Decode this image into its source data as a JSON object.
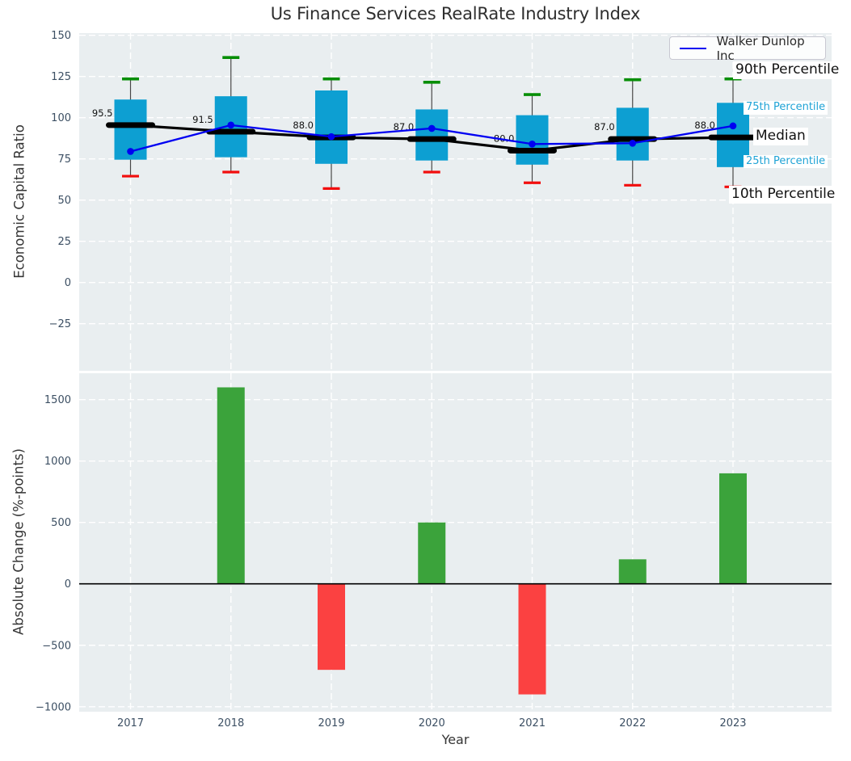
{
  "title": "Us Finance Services RealRate Industry Index",
  "colors": {
    "axes_bg": "#e9eef0",
    "grid": "#ffffff",
    "box_fill": "#0d9fd2",
    "whisker": "#474747",
    "cap_90th": "#068e06",
    "cap_10th": "#f20d0d",
    "median": "#000000",
    "walker_line": "#0000f2",
    "bar_positive": "#3ba33b",
    "bar_negative": "#fb4141",
    "tick_label": "#3c4f63",
    "title_text": "#2e2e2e",
    "percentile_label_cyan": "#1fa3d6",
    "percentile_label_black": "#111111",
    "annotation_text": "#111111",
    "zero_line": "#000000"
  },
  "legend": {
    "entries": [
      {
        "label": "Walker Dunlop Inc",
        "color": "#0000f2"
      }
    ]
  },
  "chart_data": [
    {
      "type": "boxplot_with_line",
      "title": "Us Finance Services RealRate Industry Index",
      "ylabel": "Economic Capital Ratio",
      "ylim": [
        -53.6,
        151.3
      ],
      "yticks": [
        150,
        125,
        100,
        75,
        50,
        25,
        0,
        -25
      ],
      "grid": true,
      "legend_position": "upper right",
      "categories": [
        "2017",
        "2018",
        "2019",
        "2020",
        "2021",
        "2022",
        "2023"
      ],
      "boxes": {
        "p90": [
          123.5,
          136.5,
          123.5,
          121.5,
          114.0,
          123.0,
          123.5
        ],
        "q75": [
          111.0,
          113.0,
          116.5,
          105.0,
          101.5,
          106.0,
          109.0
        ],
        "median": [
          95.5,
          91.5,
          88.0,
          87.0,
          80.0,
          87.0,
          88.0
        ],
        "q25": [
          74.5,
          76.0,
          72.0,
          74.0,
          71.5,
          74.0,
          70.0
        ],
        "p10": [
          64.5,
          67.0,
          57.0,
          67.0,
          60.5,
          59.0,
          58.0
        ]
      },
      "median_annotations": [
        "95.5",
        "91.5",
        "88.0",
        "87.0",
        "80.0",
        "87.0",
        "88.0"
      ],
      "walker": {
        "name": "Walker Dunlop Inc",
        "values": [
          79.5,
          95.5,
          88.5,
          93.5,
          84.0,
          84.5,
          95.0
        ]
      },
      "right_axis_labels": [
        {
          "text": "90th Percentile",
          "style": "black-large"
        },
        {
          "text": "75th Percentile",
          "style": "cyan-small"
        },
        {
          "text": "Median",
          "style": "black-large"
        },
        {
          "text": "25th Percentile",
          "style": "cyan-small"
        },
        {
          "text": "10th Percentile",
          "style": "black-large"
        }
      ]
    },
    {
      "type": "bar",
      "ylabel": "Absolute Change (%-points)",
      "xlabel": "Year",
      "ylim": [
        -1041,
        1715
      ],
      "yticks": [
        1500,
        1000,
        500,
        0,
        -500,
        -1000
      ],
      "grid": true,
      "zero_line": true,
      "categories": [
        "2017",
        "2018",
        "2019",
        "2020",
        "2021",
        "2022",
        "2023"
      ],
      "values": [
        null,
        1600,
        -700,
        500,
        -900,
        200,
        900
      ]
    }
  ]
}
